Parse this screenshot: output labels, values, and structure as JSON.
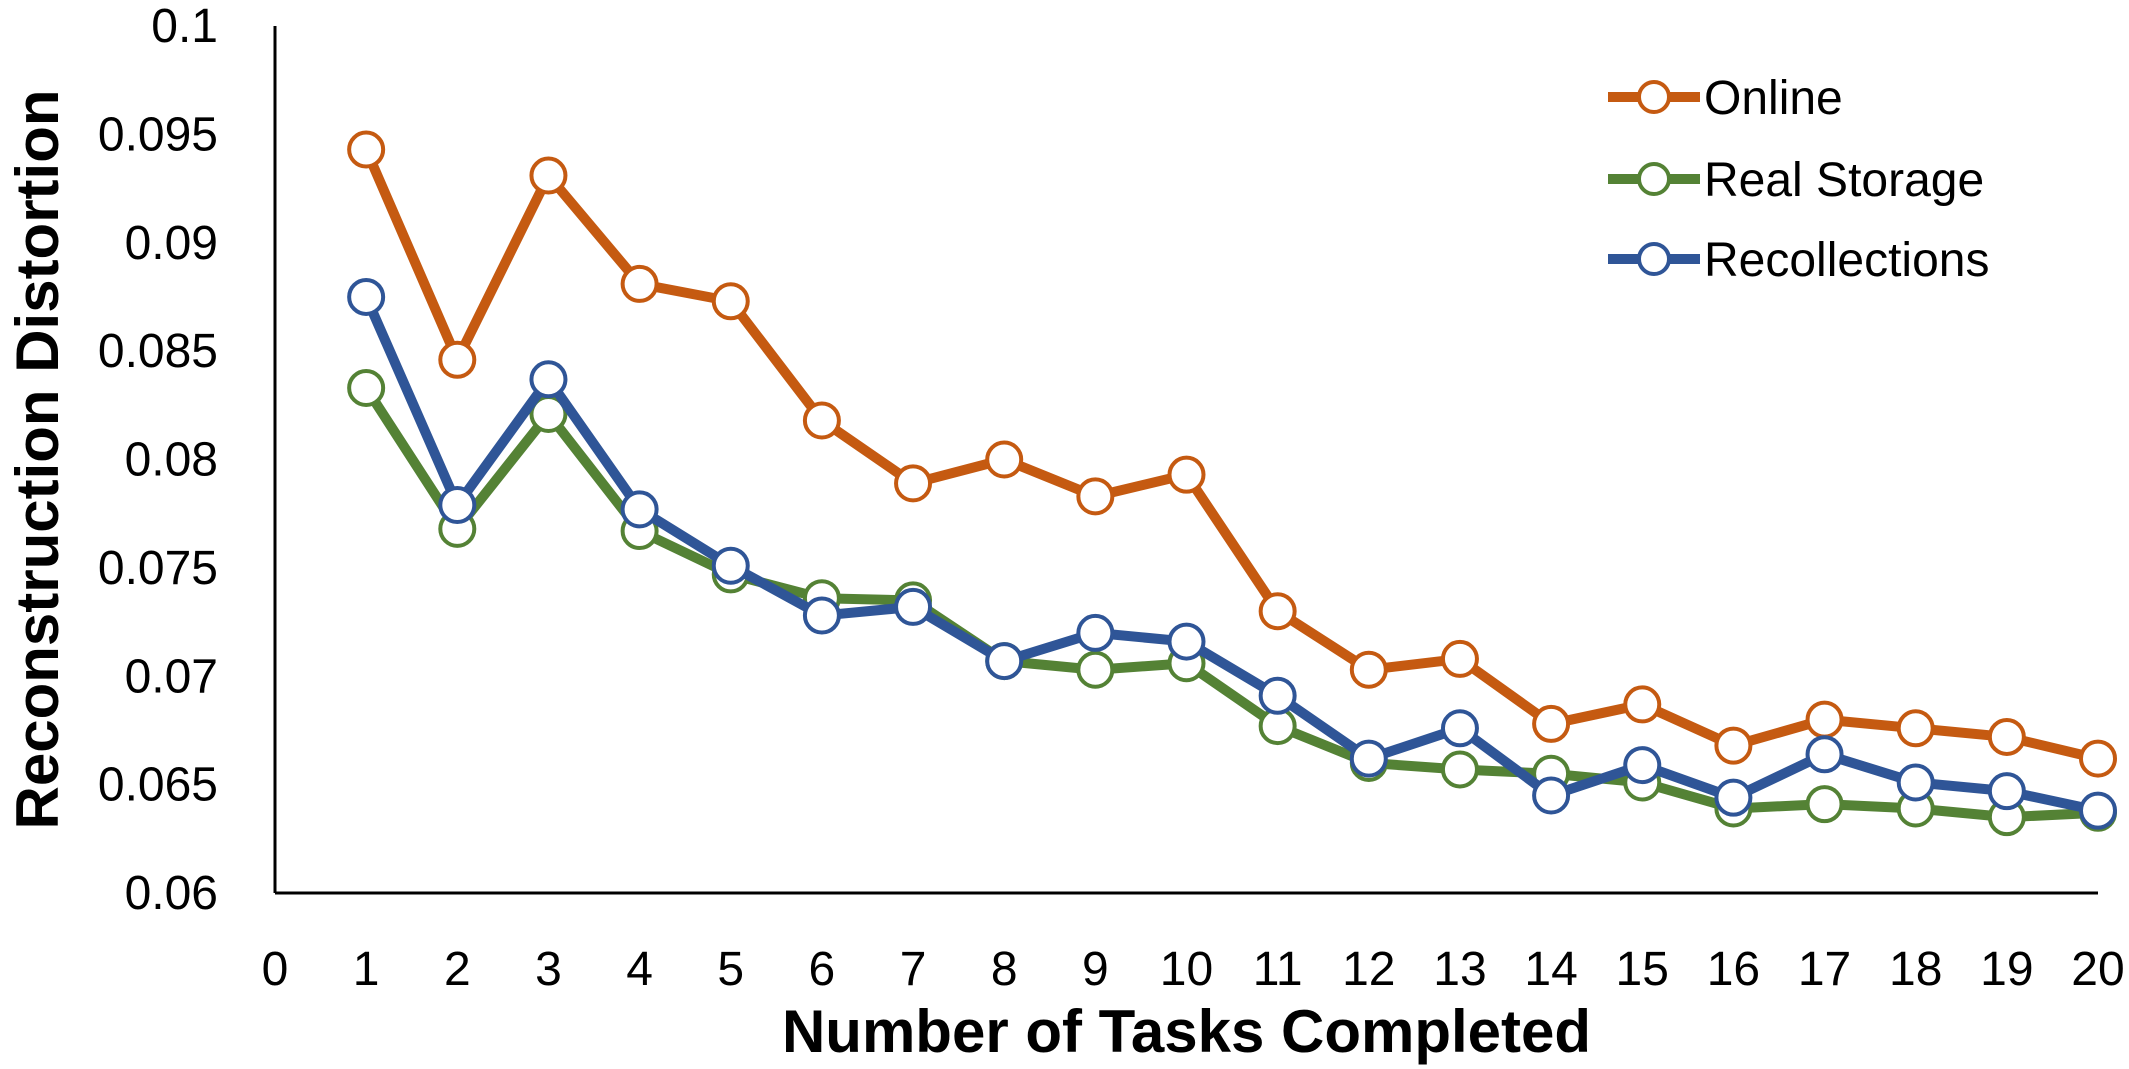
{
  "chart_data": {
    "type": "line",
    "title": "",
    "xlabel": "Number of Tasks Completed",
    "ylabel": "Reconstruction Distortion",
    "xlim": [
      0,
      20
    ],
    "ylim": [
      0.06,
      0.1
    ],
    "x_ticks": [
      "0",
      "1",
      "2",
      "3",
      "4",
      "5",
      "6",
      "7",
      "8",
      "9",
      "10",
      "11",
      "12",
      "13",
      "14",
      "15",
      "16",
      "17",
      "18",
      "19",
      "20"
    ],
    "y_ticks": [
      "0.06",
      "0.065",
      "0.07",
      "0.075",
      "0.08",
      "0.085",
      "0.09",
      "0.095",
      "0.1"
    ],
    "grid": false,
    "legend_position": "top-right",
    "x": [
      1,
      2,
      3,
      4,
      5,
      6,
      7,
      8,
      9,
      10,
      11,
      12,
      13,
      14,
      15,
      16,
      17,
      18,
      19,
      20
    ],
    "series": [
      {
        "name": "Online",
        "color": "#C55A11",
        "values": [
          0.0943,
          0.0846,
          0.0931,
          0.0881,
          0.0873,
          0.0818,
          0.0789,
          0.08,
          0.0783,
          0.0793,
          0.073,
          0.0703,
          0.0708,
          0.0678,
          0.0687,
          0.0668,
          0.068,
          0.0676,
          0.0672,
          0.0662
        ]
      },
      {
        "name": "Real Storage",
        "color": "#548235",
        "values": [
          0.0833,
          0.0768,
          0.0821,
          0.0767,
          0.0747,
          0.0736,
          0.0735,
          0.0707,
          0.0703,
          0.0706,
          0.0677,
          0.066,
          0.0657,
          0.0655,
          0.0651,
          0.0639,
          0.0641,
          0.0639,
          0.0635,
          0.0637
        ]
      },
      {
        "name": "Recollections",
        "color": "#2F5597",
        "values": [
          0.0875,
          0.0779,
          0.0837,
          0.0777,
          0.0751,
          0.0728,
          0.0732,
          0.0707,
          0.072,
          0.0716,
          0.0691,
          0.0662,
          0.0676,
          0.0645,
          0.0659,
          0.0644,
          0.0664,
          0.0651,
          0.0647,
          0.0638
        ]
      }
    ]
  }
}
